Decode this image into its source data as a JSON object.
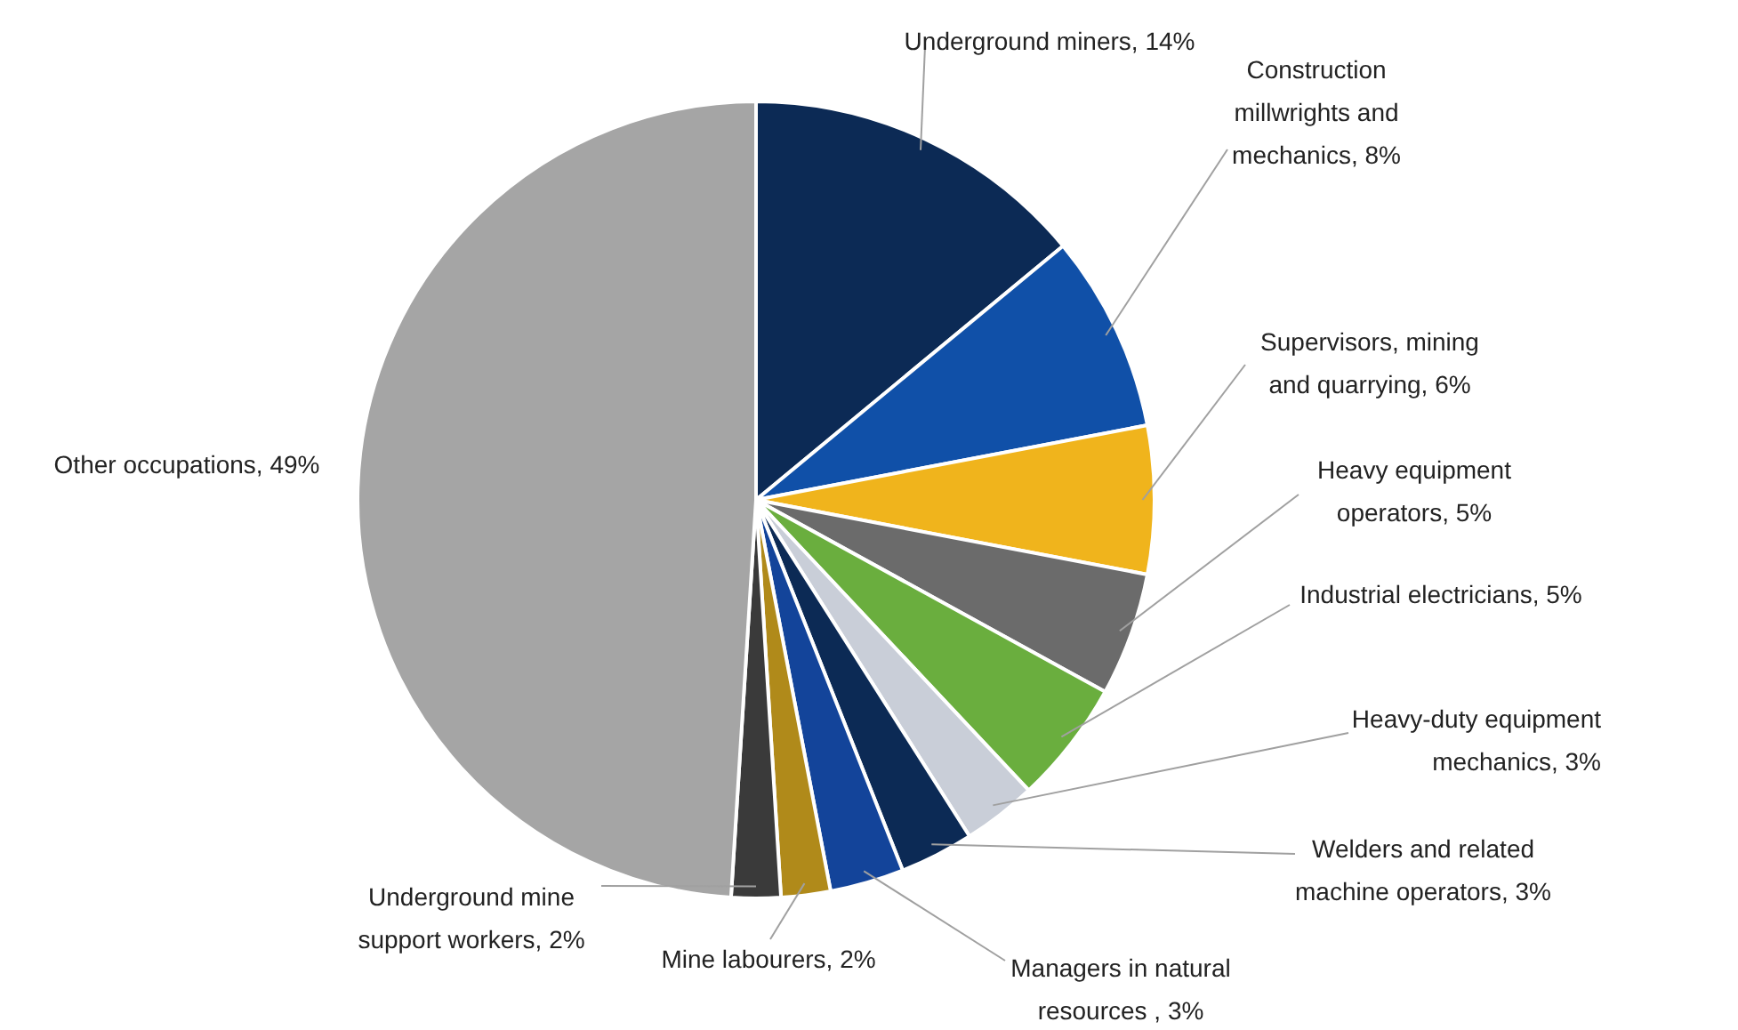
{
  "chart_data": {
    "type": "pie",
    "categories": [
      "Underground miners",
      "Construction millwrights and mechanics",
      "Supervisors, mining and quarrying",
      "Heavy equipment operators",
      "Industrial electricians",
      "Heavy-duty equipment mechanics",
      "Welders and related machine operators",
      "Managers in natural resources ",
      "Mine labourers",
      "Underground mine support workers",
      "Other occupations"
    ],
    "values": [
      14,
      8,
      6,
      5,
      5,
      3,
      3,
      3,
      2,
      2,
      49
    ],
    "value_labels": [
      "14%",
      "8%",
      "6%",
      "5%",
      "5%",
      "3%",
      "3%",
      "3%",
      "2%",
      "2%",
      "49%"
    ],
    "colors": [
      "#0c2a55",
      "#1050a8",
      "#f0b41c",
      "#6b6b6b",
      "#6aae3e",
      "#c9ced8",
      "#0c2a55",
      "#13449a",
      "#b08a1a",
      "#3a3a3a",
      "#a5a5a5"
    ],
    "legend": false
  }
}
